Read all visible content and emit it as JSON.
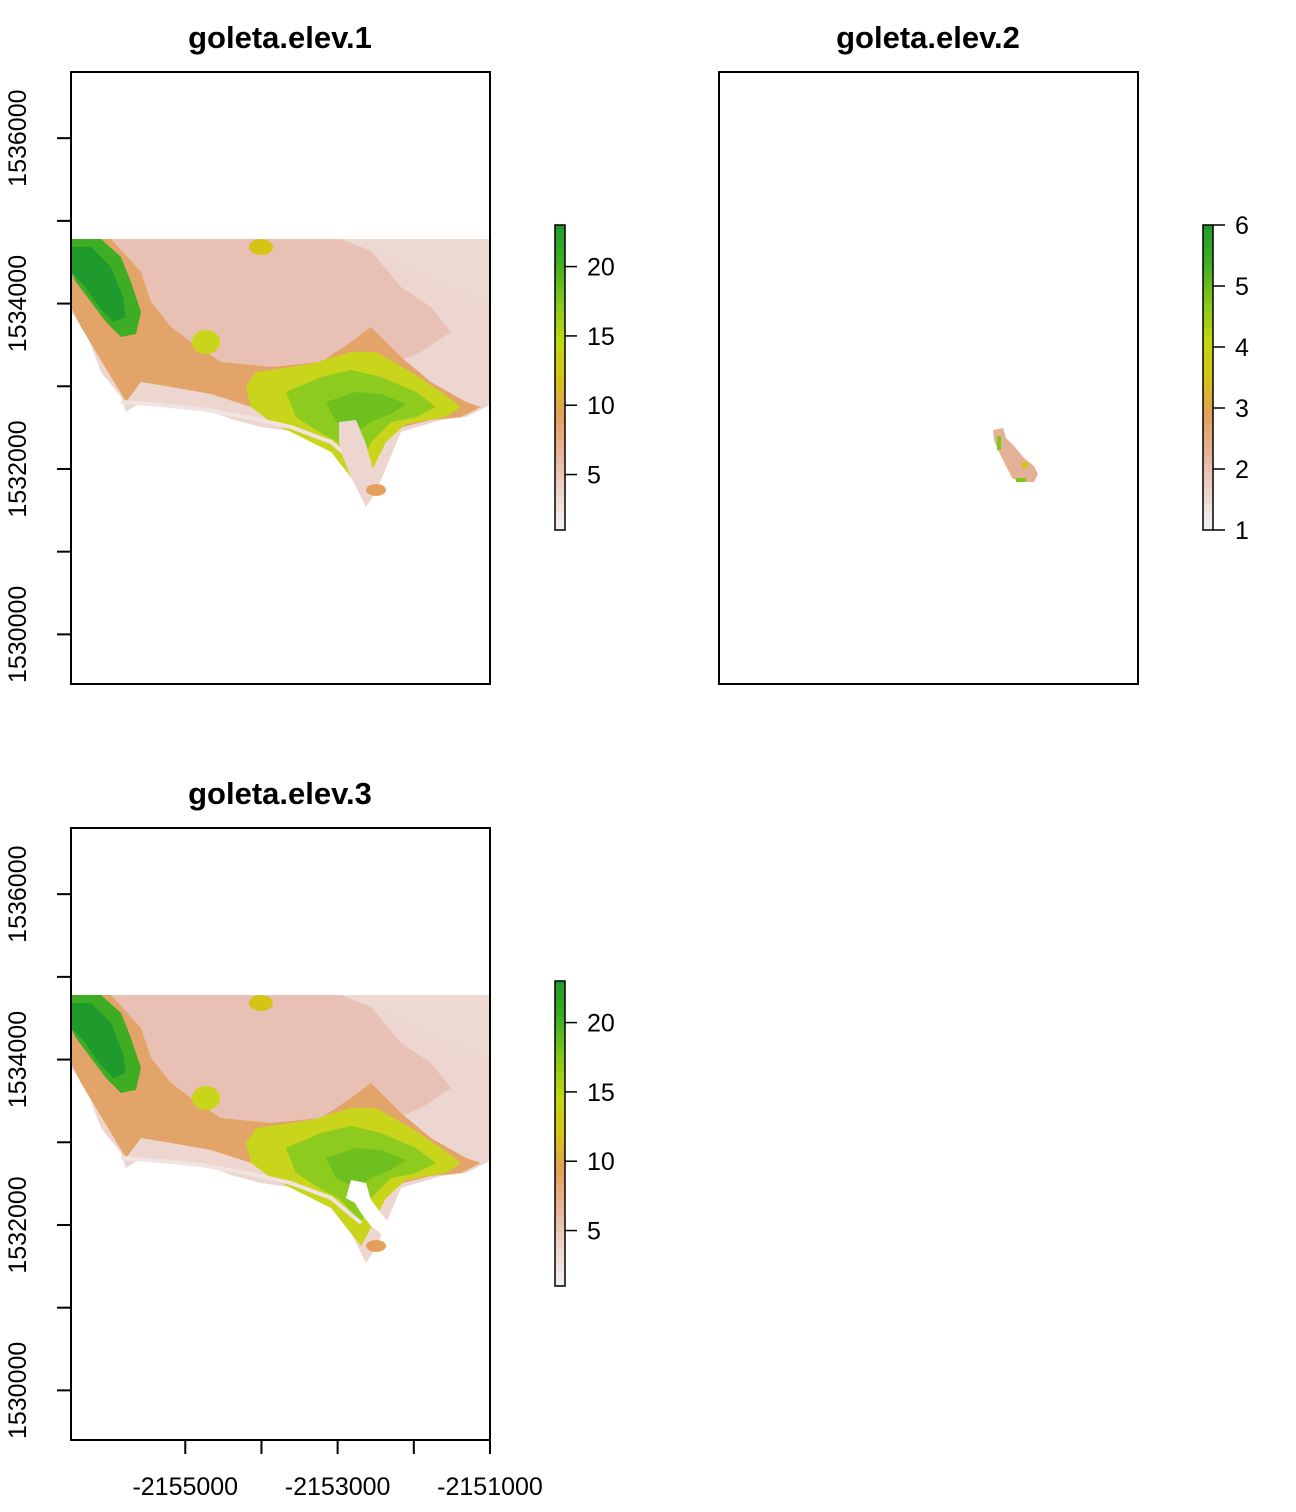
{
  "chart_data": [
    {
      "type": "heatmap",
      "title": "goleta.elev.1",
      "xlim": [
        -2156500,
        -2151000
      ],
      "ylim": [
        1529400,
        1536800
      ],
      "yticks": [
        1530000,
        1531000,
        1532000,
        1533000,
        1534000,
        1535000,
        1536000
      ],
      "ytick_labels": [
        "1530000",
        "",
        "1532000",
        "",
        "1534000",
        "",
        "1536000"
      ],
      "xticks": [],
      "x_axis_shown": false,
      "y_axis_shown": true,
      "legend": {
        "placement": "right",
        "min": 1,
        "max": 23,
        "ticks": [
          5,
          10,
          15,
          20
        ],
        "tick_labels": [
          "5",
          "10",
          "15",
          "20"
        ]
      },
      "raster_variant": "full"
    },
    {
      "type": "heatmap",
      "title": "goleta.elev.2",
      "xlim": [
        -2156500,
        -2151000
      ],
      "ylim": [
        1529400,
        1536800
      ],
      "yticks": [],
      "xticks": [],
      "x_axis_shown": false,
      "y_axis_shown": false,
      "legend": {
        "placement": "right",
        "min": 1,
        "max": 6,
        "ticks": [
          1,
          2,
          3,
          4,
          5,
          6
        ],
        "tick_labels": [
          "1",
          "2",
          "3",
          "4",
          "5",
          "6"
        ]
      },
      "raster_variant": "patch"
    },
    {
      "type": "heatmap",
      "title": "goleta.elev.3",
      "xlim": [
        -2156500,
        -2151000
      ],
      "ylim": [
        1529400,
        1536800
      ],
      "yticks": [
        1530000,
        1531000,
        1532000,
        1533000,
        1534000,
        1535000,
        1536000
      ],
      "ytick_labels": [
        "1530000",
        "",
        "1532000",
        "",
        "1534000",
        "",
        "1536000"
      ],
      "xticks": [
        -2155000,
        -2154000,
        -2153000,
        -2152000,
        -2151000
      ],
      "xtick_labels": [
        "-2155000",
        "",
        "-2153000",
        "",
        "-2151000"
      ],
      "x_axis_shown": true,
      "y_axis_shown": true,
      "legend": {
        "placement": "right",
        "min": 1,
        "max": 23,
        "ticks": [
          5,
          10,
          15,
          20
        ],
        "tick_labels": [
          "5",
          "10",
          "15",
          "20"
        ]
      },
      "raster_variant": "full-with-hole"
    }
  ],
  "colors": {
    "ramp": [
      "#f2f2f2",
      "#eed6d0",
      "#e8b49a",
      "#e3a05a",
      "#d6c415",
      "#c2d612",
      "#82c61c",
      "#3fad24",
      "#1f9a2c"
    ],
    "axis": "#000000",
    "background": "#ffffff"
  }
}
